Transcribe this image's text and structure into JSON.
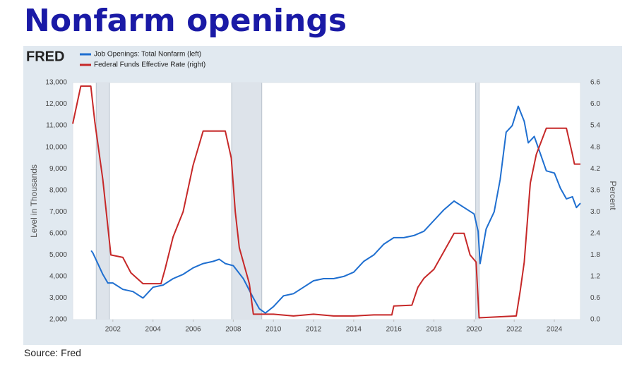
{
  "chart_data": {
    "type": "line",
    "title": "Nonfarm openings",
    "logo": "FRED",
    "source": "Source: Fred",
    "y_label": "Level in Thousands",
    "y2_label": "Percent",
    "xlim": [
      2000,
      2025.3
    ],
    "xticks": [
      2002,
      2004,
      2006,
      2008,
      2010,
      2012,
      2014,
      2016,
      2018,
      2020,
      2022,
      2024
    ],
    "ylim": [
      2000,
      13000
    ],
    "yticks": [
      {
        "value": 2000,
        "label": "2,000"
      },
      {
        "value": 3000,
        "label": "3,000"
      },
      {
        "value": 4000,
        "label": "4,000"
      },
      {
        "value": 5000,
        "label": "5,000"
      },
      {
        "value": 6000,
        "label": "6,000"
      },
      {
        "value": 7000,
        "label": "7,000"
      },
      {
        "value": 8000,
        "label": "8,000"
      },
      {
        "value": 9000,
        "label": "9,000"
      },
      {
        "value": 10000,
        "label": "10,000"
      },
      {
        "value": 11000,
        "label": "11,000"
      },
      {
        "value": 12000,
        "label": "12,000"
      },
      {
        "value": 13000,
        "label": "13,000"
      }
    ],
    "y2lim": [
      0,
      6.6
    ],
    "y2ticks": [
      {
        "value": 0,
        "label": "0.0"
      },
      0.6,
      1.2,
      1.8,
      2.4,
      {
        "value": 3,
        "label": "3.0"
      },
      3.6,
      4.2,
      4.8,
      5.4,
      {
        "value": 6,
        "label": "6.0"
      },
      6.6
    ],
    "recessions": [
      [
        2001.17,
        2001.83
      ],
      [
        2007.92,
        2009.42
      ],
      [
        2020.08,
        2020.25
      ]
    ],
    "grid": false,
    "legend": "top-left",
    "series": [
      {
        "name": "Job Openings: Total Nonfarm (left)",
        "color": "#1f6fd0",
        "axis": "y",
        "x": [
          2000.92,
          2001.0,
          2001.25,
          2001.5,
          2001.75,
          2002.0,
          2002.5,
          2003.0,
          2003.5,
          2003.8,
          2004.0,
          2004.5,
          2005.0,
          2005.5,
          2006.0,
          2006.5,
          2007.0,
          2007.3,
          2007.6,
          2008.0,
          2008.5,
          2009.0,
          2009.3,
          2009.6,
          2010.0,
          2010.5,
          2011.0,
          2011.5,
          2012.0,
          2012.5,
          2013.0,
          2013.5,
          2014.0,
          2014.5,
          2015.0,
          2015.5,
          2016.0,
          2016.5,
          2017.0,
          2017.5,
          2018.0,
          2018.5,
          2019.0,
          2019.5,
          2020.0,
          2020.2,
          2020.3,
          2020.6,
          2021.0,
          2021.3,
          2021.6,
          2021.9,
          2022.2,
          2022.5,
          2022.7,
          2023.0,
          2023.3,
          2023.6,
          2024.0,
          2024.3,
          2024.6,
          2024.9,
          2025.1,
          2025.3
        ],
        "values": [
          5200,
          5100,
          4600,
          4100,
          3700,
          3700,
          3400,
          3300,
          3000,
          3300,
          3500,
          3600,
          3900,
          4100,
          4400,
          4600,
          4700,
          4800,
          4600,
          4500,
          3900,
          3000,
          2500,
          2300,
          2600,
          3100,
          3200,
          3500,
          3800,
          3900,
          3900,
          4000,
          4200,
          4700,
          5000,
          5500,
          5800,
          5800,
          5900,
          6100,
          6600,
          7100,
          7500,
          7200,
          6900,
          6100,
          4600,
          6200,
          7000,
          8500,
          10700,
          11000,
          11900,
          11200,
          10200,
          10500,
          9700,
          8900,
          8800,
          8100,
          7600,
          7700,
          7200,
          7400
        ]
      },
      {
        "name": "Federal Funds Effective Rate (right)",
        "color": "#c62828",
        "axis": "y2",
        "x": [
          2000.0,
          2000.4,
          2000.9,
          2001.1,
          2001.5,
          2001.9,
          2002.5,
          2002.9,
          2003.5,
          2004.4,
          2004.6,
          2005.0,
          2005.5,
          2006.0,
          2006.5,
          2007.6,
          2007.9,
          2008.1,
          2008.3,
          2008.8,
          2009.0,
          2010.0,
          2011.0,
          2012.0,
          2013.0,
          2014.0,
          2015.0,
          2015.9,
          2016.0,
          2016.9,
          2017.2,
          2017.5,
          2018.0,
          2018.5,
          2019.0,
          2019.5,
          2019.8,
          2020.1,
          2020.25,
          2022.1,
          2022.3,
          2022.5,
          2022.8,
          2023.1,
          2023.6,
          2024.6,
          2024.9,
          2025.0,
          2025.3
        ],
        "values": [
          5.45,
          6.5,
          6.5,
          5.5,
          3.9,
          1.8,
          1.73,
          1.3,
          1.0,
          1.0,
          1.4,
          2.3,
          3.0,
          4.3,
          5.25,
          5.25,
          4.5,
          3.0,
          2.0,
          1.0,
          0.15,
          0.15,
          0.1,
          0.15,
          0.1,
          0.1,
          0.13,
          0.13,
          0.38,
          0.4,
          0.9,
          1.15,
          1.4,
          1.9,
          2.4,
          2.4,
          1.8,
          1.6,
          0.05,
          0.1,
          0.8,
          1.6,
          3.8,
          4.6,
          5.33,
          5.33,
          4.6,
          4.33,
          4.33
        ]
      }
    ]
  }
}
